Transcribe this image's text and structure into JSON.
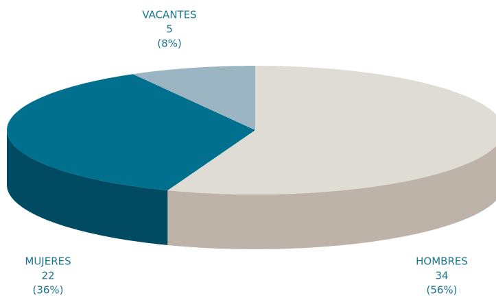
{
  "chart_data": {
    "type": "pie3d",
    "categories": [
      "HOMBRES",
      "MUJERES",
      "VACANTES"
    ],
    "values": [
      34,
      22,
      5
    ],
    "percentages": [
      {
        "value": 56,
        "label": "(56%)"
      },
      {
        "value": 36,
        "label": "(36%)"
      },
      {
        "value": 8,
        "label": "(8%)"
      }
    ],
    "colors": [
      "#dfdcd6",
      "#00708e",
      "#9cb5c2"
    ],
    "side_colors": [
      "#bdb3a8",
      "#004b61",
      "#7e97a4"
    ]
  }
}
